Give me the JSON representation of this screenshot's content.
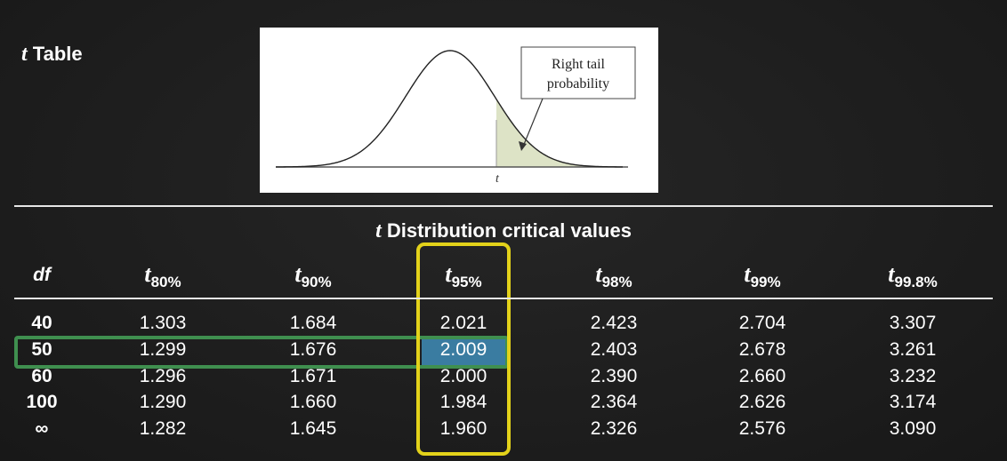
{
  "page": {
    "title_italic": "t",
    "title_rest": "Table"
  },
  "figure": {
    "callout_line1": "Right tail",
    "callout_line2": "probability",
    "axis_label": "t"
  },
  "table": {
    "caption_italic": "t",
    "caption_rest": "Distribution critical values",
    "df_header": "df",
    "columns": [
      {
        "symbol": "t",
        "sub": "80%"
      },
      {
        "symbol": "t",
        "sub": "90%"
      },
      {
        "symbol": "t",
        "sub": "95%"
      },
      {
        "symbol": "t",
        "sub": "98%"
      },
      {
        "symbol": "t",
        "sub": "99%"
      },
      {
        "symbol": "t",
        "sub": "99.8%"
      }
    ],
    "rows": [
      {
        "df": "40",
        "values": [
          "1.303",
          "1.684",
          "2.021",
          "2.423",
          "2.704",
          "3.307"
        ]
      },
      {
        "df": "50",
        "values": [
          "1.299",
          "1.676",
          "2.009",
          "2.403",
          "2.678",
          "3.261"
        ]
      },
      {
        "df": "60",
        "values": [
          "1.296",
          "1.671",
          "2.000",
          "2.390",
          "2.660",
          "3.232"
        ]
      },
      {
        "df": "100",
        "values": [
          "1.290",
          "1.660",
          "1.984",
          "2.364",
          "2.626",
          "3.174"
        ]
      },
      {
        "df": "∞",
        "values": [
          "1.282",
          "1.645",
          "1.960",
          "2.326",
          "2.576",
          "3.090"
        ]
      }
    ],
    "highlight_row_index": 1,
    "highlight_column_index": 2
  },
  "colors": {
    "row_highlight": "#3f8f4f",
    "column_highlight": "#e3d21a",
    "cell_highlight": "#3a7ca1",
    "tail_fill": "#dde3c6"
  }
}
